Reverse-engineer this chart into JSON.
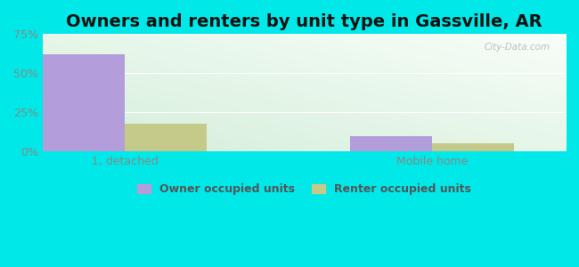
{
  "title": "Owners and renters by unit type in Gassville, AR",
  "categories": [
    "1, detached",
    "Mobile home"
  ],
  "owner_values": [
    62,
    10
  ],
  "renter_values": [
    18,
    5
  ],
  "owner_color": "#b39ddb",
  "renter_color": "#c5c98a",
  "ylim": [
    0,
    75
  ],
  "yticks": [
    0,
    25,
    50,
    75
  ],
  "ytick_labels": [
    "0%",
    "25%",
    "50%",
    "75%"
  ],
  "outer_bg": "#00e8e8",
  "bar_width": 0.4,
  "group_positions": [
    0.35,
    1.85
  ],
  "xlim": [
    -0.05,
    2.5
  ],
  "legend_labels": [
    "Owner occupied units",
    "Renter occupied units"
  ],
  "watermark": "City-Data.com",
  "title_fontsize": 14,
  "tick_fontsize": 9,
  "grid_color": "#e0e0e0",
  "plot_bg_colors": [
    "#d4eeda",
    "#edf7ee",
    "#f5faf5",
    "#ffffff"
  ],
  "tick_color": "#888888"
}
